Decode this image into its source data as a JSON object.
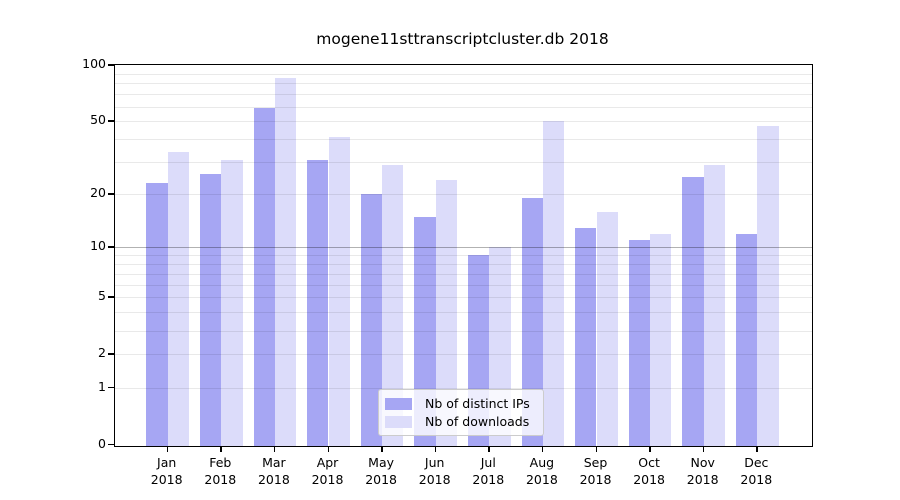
{
  "chart_data": {
    "type": "bar",
    "title": "mogene11sttranscriptcluster.db 2018",
    "yscale": "log1p",
    "ylim": [
      0,
      100
    ],
    "grid": true,
    "legend_position": "lower center",
    "ytick_values": [
      0,
      1,
      2,
      5,
      10,
      20,
      50,
      100
    ],
    "ytick_labels": [
      "0",
      "1",
      "2",
      "5",
      "10",
      "20",
      "50",
      "100"
    ],
    "minor_grid_values": [
      3,
      4,
      6,
      7,
      8,
      9,
      30,
      40,
      60,
      70,
      80,
      90
    ],
    "emphasized_grid_value": 10,
    "categories": [
      "Jan",
      "Feb",
      "Mar",
      "Apr",
      "May",
      "Jun",
      "Jul",
      "Aug",
      "Sep",
      "Oct",
      "Nov",
      "Dec"
    ],
    "year": "2018",
    "series": [
      {
        "name": "Nb of distinct IPs",
        "key": "distinct-ips",
        "color": "#a6a6f3",
        "values": [
          23,
          26,
          59,
          31,
          20,
          15,
          9,
          19,
          13,
          11,
          25,
          12
        ]
      },
      {
        "name": "Nb of downloads",
        "key": "downloads",
        "color": "#dcdcfa",
        "values": [
          34,
          31,
          85,
          41,
          29,
          24,
          10,
          50,
          16,
          12,
          29,
          47
        ]
      }
    ],
    "colors": {
      "grid_minor": "rgba(0,0,0,0.085)",
      "grid_emphasis": "rgba(0,0,0,0.30)",
      "axis": "#000000"
    }
  }
}
